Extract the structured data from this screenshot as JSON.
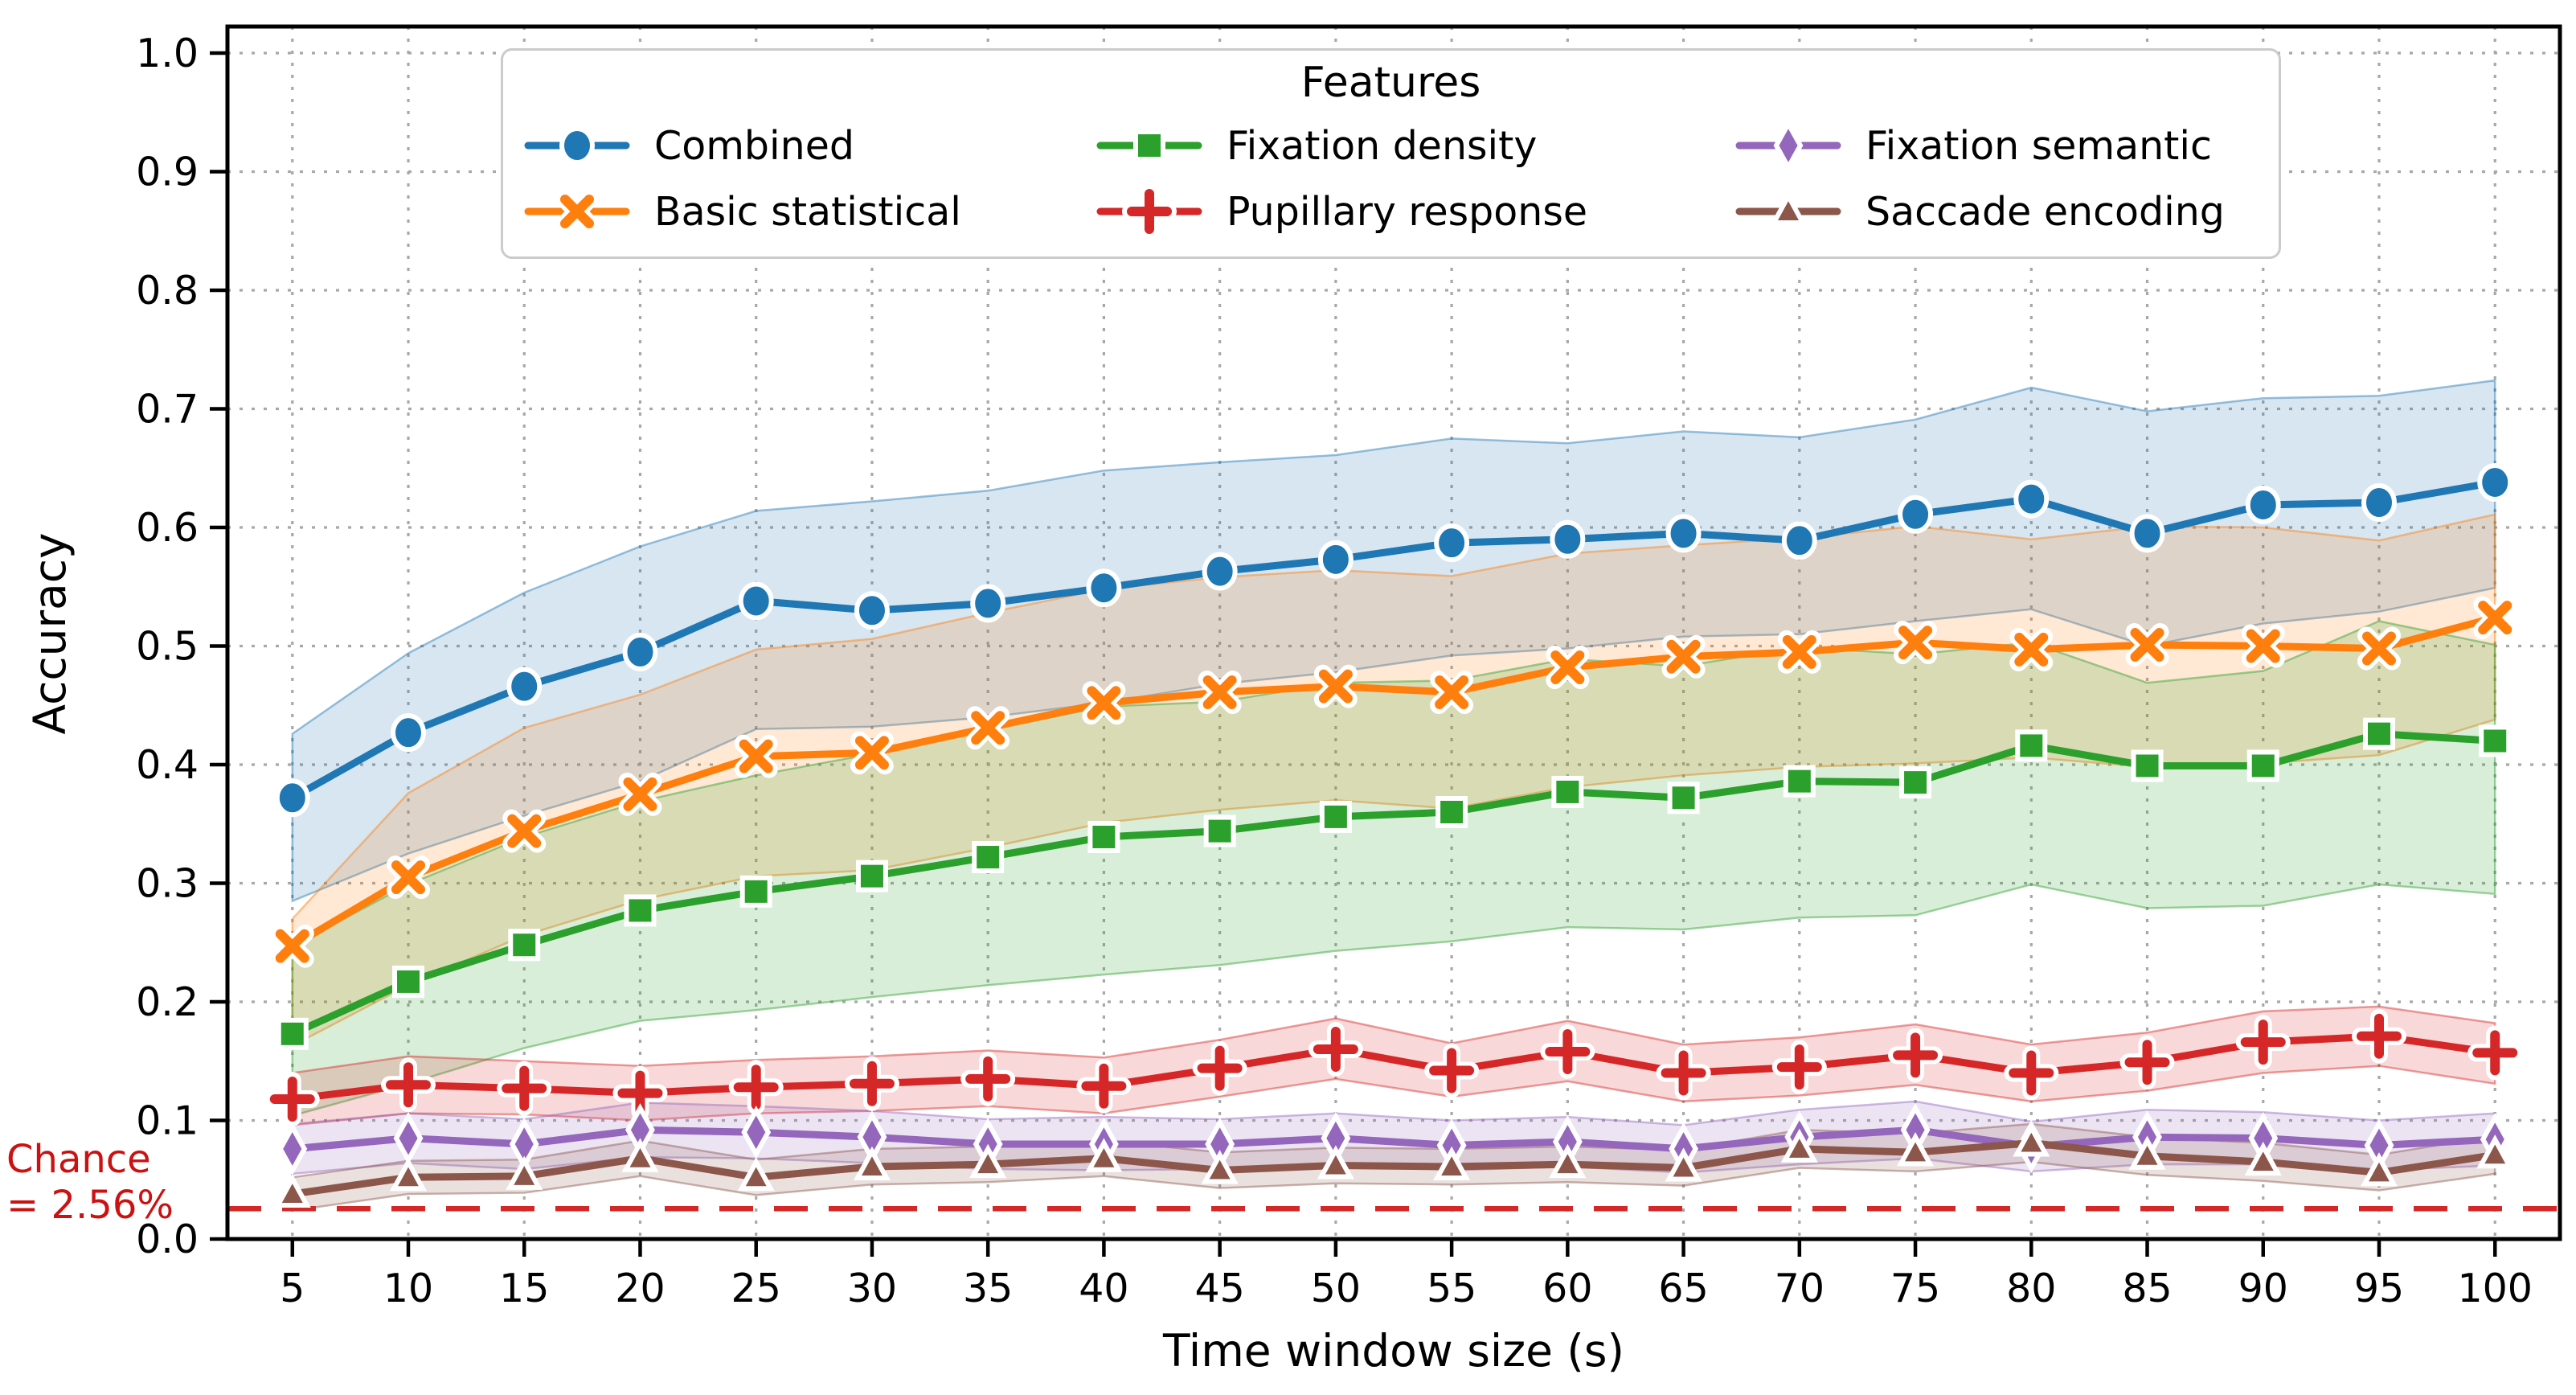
{
  "chart_data": {
    "type": "line",
    "title": "",
    "xlabel": "Time window size (s)",
    "ylabel": "Accuracy",
    "xlim": [
      2.2,
      102.8
    ],
    "ylim": [
      0.0,
      1.0
    ],
    "xticks": [
      5,
      10,
      15,
      20,
      25,
      30,
      35,
      40,
      45,
      50,
      55,
      60,
      65,
      70,
      75,
      80,
      85,
      90,
      95,
      100
    ],
    "yticks": [
      0.0,
      0.1,
      0.2,
      0.3,
      0.4,
      0.5,
      0.6,
      0.7,
      0.8,
      0.9,
      1.0
    ],
    "grid": true,
    "grid_color": "#a8a8a8",
    "x": [
      5,
      10,
      15,
      20,
      25,
      30,
      35,
      40,
      45,
      50,
      55,
      60,
      65,
      70,
      75,
      80,
      85,
      90,
      95,
      100
    ],
    "legend": {
      "title": "Features",
      "position": "upper center",
      "columns": 3
    },
    "series": [
      {
        "name": "Combined",
        "id": "combined",
        "color": "#1f77b4",
        "marker": "circle",
        "values": [
          0.372,
          0.427,
          0.466,
          0.495,
          0.538,
          0.53,
          0.536,
          0.549,
          0.563,
          0.573,
          0.587,
          0.59,
          0.595,
          0.589,
          0.611,
          0.624,
          0.595,
          0.619,
          0.621,
          0.638
        ],
        "band_lower": [
          0.285,
          0.325,
          0.357,
          0.386,
          0.43,
          0.432,
          0.44,
          0.452,
          0.468,
          0.478,
          0.492,
          0.498,
          0.508,
          0.51,
          0.521,
          0.531,
          0.5,
          0.519,
          0.529,
          0.549
        ],
        "band_upper": [
          0.426,
          0.494,
          0.545,
          0.584,
          0.614,
          0.622,
          0.631,
          0.648,
          0.655,
          0.661,
          0.675,
          0.671,
          0.681,
          0.676,
          0.691,
          0.718,
          0.698,
          0.709,
          0.711,
          0.724
        ]
      },
      {
        "name": "Basic statistical",
        "id": "basic-statistical",
        "color": "#ff7f0e",
        "marker": "x",
        "values": [
          0.247,
          0.305,
          0.344,
          0.375,
          0.407,
          0.41,
          0.431,
          0.452,
          0.461,
          0.466,
          0.461,
          0.482,
          0.491,
          0.495,
          0.503,
          0.497,
          0.501,
          0.5,
          0.498,
          0.524
        ],
        "band_lower": [
          0.163,
          0.214,
          0.256,
          0.286,
          0.306,
          0.311,
          0.33,
          0.351,
          0.362,
          0.37,
          0.363,
          0.381,
          0.391,
          0.398,
          0.401,
          0.406,
          0.398,
          0.401,
          0.408,
          0.438
        ],
        "band_upper": [
          0.27,
          0.376,
          0.431,
          0.459,
          0.497,
          0.506,
          0.528,
          0.548,
          0.558,
          0.564,
          0.559,
          0.578,
          0.585,
          0.591,
          0.601,
          0.59,
          0.601,
          0.6,
          0.589,
          0.611
        ]
      },
      {
        "name": "Fixation density",
        "id": "fixation-density",
        "color": "#2ca02c",
        "marker": "square",
        "values": [
          0.173,
          0.217,
          0.248,
          0.277,
          0.293,
          0.306,
          0.322,
          0.339,
          0.344,
          0.356,
          0.36,
          0.377,
          0.372,
          0.386,
          0.385,
          0.416,
          0.399,
          0.399,
          0.426,
          0.42
        ],
        "band_lower": [
          0.104,
          0.131,
          0.161,
          0.184,
          0.193,
          0.204,
          0.214,
          0.223,
          0.231,
          0.243,
          0.251,
          0.263,
          0.261,
          0.271,
          0.273,
          0.299,
          0.279,
          0.281,
          0.299,
          0.291
        ],
        "band_upper": [
          0.247,
          0.299,
          0.339,
          0.369,
          0.391,
          0.409,
          0.429,
          0.449,
          0.453,
          0.469,
          0.471,
          0.489,
          0.483,
          0.499,
          0.493,
          0.503,
          0.469,
          0.479,
          0.521,
          0.501
        ]
      },
      {
        "name": "Pupillary response",
        "id": "pupillary-response",
        "color": "#d62728",
        "marker": "plus",
        "values": [
          0.118,
          0.13,
          0.127,
          0.123,
          0.128,
          0.131,
          0.135,
          0.129,
          0.144,
          0.16,
          0.142,
          0.158,
          0.14,
          0.145,
          0.155,
          0.14,
          0.149,
          0.166,
          0.171,
          0.157
        ],
        "band_lower": [
          0.096,
          0.106,
          0.105,
          0.1,
          0.106,
          0.108,
          0.112,
          0.106,
          0.12,
          0.135,
          0.12,
          0.133,
          0.116,
          0.121,
          0.13,
          0.116,
          0.125,
          0.14,
          0.146,
          0.131
        ],
        "band_upper": [
          0.14,
          0.154,
          0.15,
          0.146,
          0.151,
          0.154,
          0.159,
          0.153,
          0.168,
          0.186,
          0.165,
          0.184,
          0.164,
          0.17,
          0.181,
          0.164,
          0.174,
          0.192,
          0.196,
          0.182
        ]
      },
      {
        "name": "Fixation semantic",
        "id": "fixation-semantic",
        "color": "#9467bd",
        "marker": "diamond",
        "values": [
          0.076,
          0.085,
          0.08,
          0.092,
          0.09,
          0.086,
          0.08,
          0.08,
          0.08,
          0.085,
          0.079,
          0.082,
          0.076,
          0.086,
          0.092,
          0.078,
          0.086,
          0.085,
          0.079,
          0.084
        ],
        "band_lower": [
          0.055,
          0.064,
          0.059,
          0.069,
          0.068,
          0.064,
          0.059,
          0.058,
          0.059,
          0.064,
          0.058,
          0.061,
          0.056,
          0.063,
          0.068,
          0.057,
          0.063,
          0.063,
          0.058,
          0.062
        ],
        "band_upper": [
          0.097,
          0.106,
          0.101,
          0.115,
          0.112,
          0.108,
          0.101,
          0.103,
          0.101,
          0.106,
          0.1,
          0.103,
          0.096,
          0.109,
          0.116,
          0.099,
          0.109,
          0.107,
          0.1,
          0.106
        ]
      },
      {
        "name": "Saccade encoding",
        "id": "saccade-encoding",
        "color": "#8c564b",
        "marker": "triangle",
        "values": [
          0.038,
          0.052,
          0.053,
          0.068,
          0.052,
          0.061,
          0.063,
          0.068,
          0.058,
          0.062,
          0.061,
          0.063,
          0.06,
          0.076,
          0.073,
          0.081,
          0.07,
          0.065,
          0.056,
          0.071
        ],
        "band_lower": [
          0.024,
          0.038,
          0.039,
          0.053,
          0.037,
          0.046,
          0.048,
          0.053,
          0.043,
          0.047,
          0.046,
          0.048,
          0.045,
          0.06,
          0.057,
          0.065,
          0.054,
          0.049,
          0.041,
          0.055
        ],
        "band_upper": [
          0.052,
          0.066,
          0.067,
          0.083,
          0.067,
          0.076,
          0.078,
          0.083,
          0.073,
          0.077,
          0.076,
          0.078,
          0.075,
          0.092,
          0.089,
          0.097,
          0.086,
          0.081,
          0.071,
          0.087
        ]
      }
    ],
    "chance": {
      "label_line1": "Chance",
      "label_line2": "= 2.56%",
      "value": 0.0256,
      "line_color": "#d62728",
      "text_color": "#cc1111",
      "style": "dashed"
    }
  }
}
